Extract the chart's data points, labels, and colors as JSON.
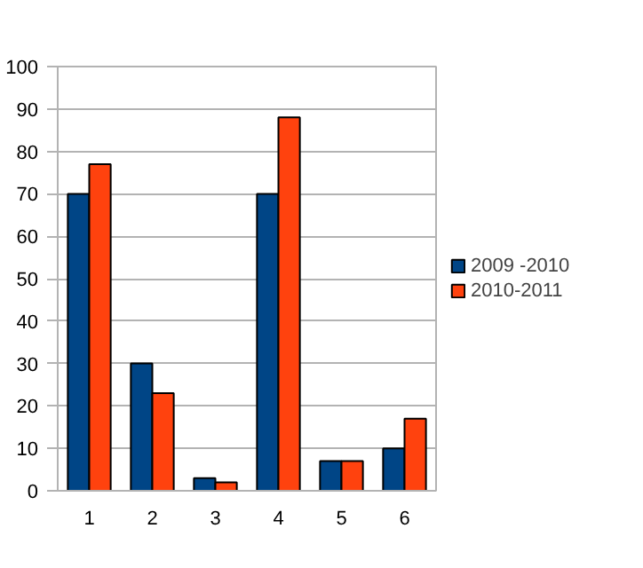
{
  "chart_data": {
    "type": "bar",
    "categories": [
      "1",
      "2",
      "3",
      "4",
      "5",
      "6"
    ],
    "series": [
      {
        "name": "2009 -2010",
        "color": "#004586",
        "values": [
          70,
          30,
          3,
          70,
          7,
          10
        ]
      },
      {
        "name": "2010-2011",
        "color": "#ff420e",
        "values": [
          77,
          23,
          2,
          88,
          7,
          17
        ]
      }
    ],
    "ylim": [
      0,
      100
    ],
    "yticks": [
      0,
      10,
      20,
      30,
      40,
      50,
      60,
      70,
      80,
      90,
      100
    ],
    "grid": "y",
    "legend": "right"
  }
}
